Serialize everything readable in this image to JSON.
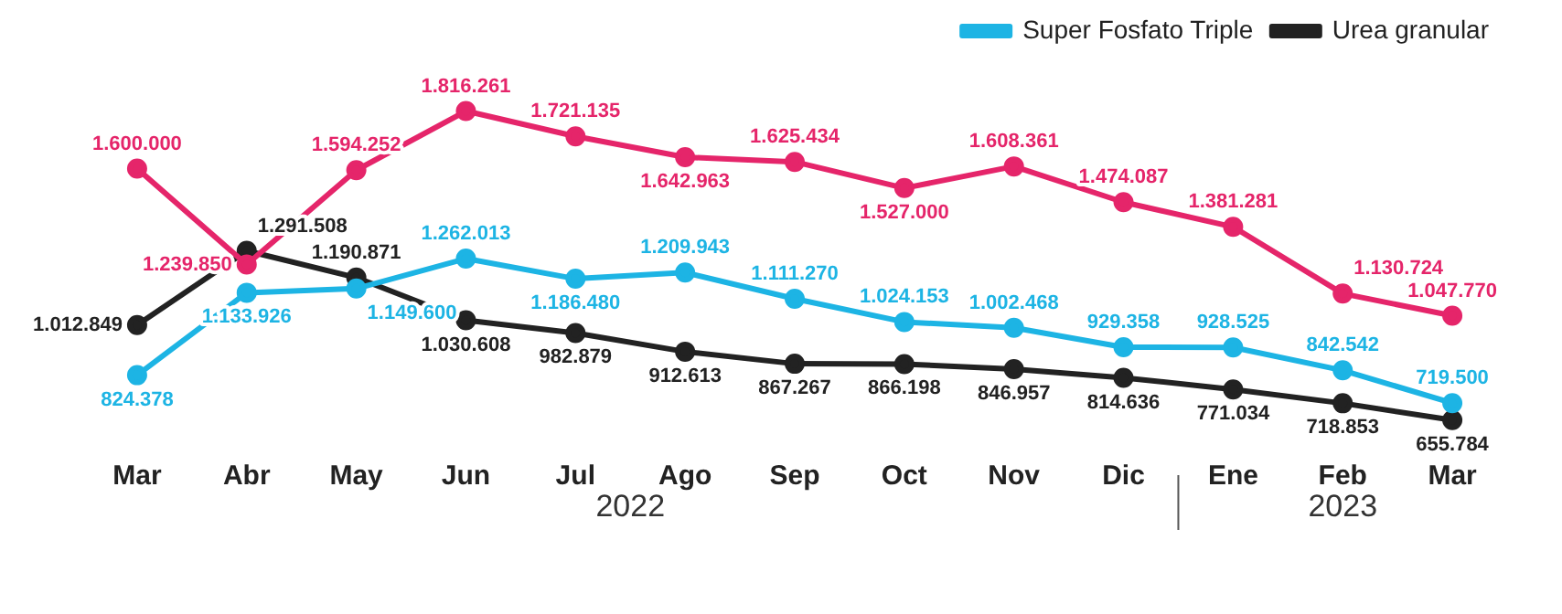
{
  "chart_data": {
    "type": "line",
    "categories": [
      "Mar",
      "Abr",
      "May",
      "Jun",
      "Jul",
      "Ago",
      "Sep",
      "Oct",
      "Nov",
      "Dic",
      "Ene",
      "Feb",
      "Mar"
    ],
    "series": [
      {
        "color": "#e5256a",
        "values": [
          1600000,
          1239850,
          1594252,
          1816261,
          1721135,
          1642963,
          1625434,
          1527000,
          1608361,
          1474087,
          1381281,
          1130724,
          1047770
        ],
        "value_labels": [
          "1.600.000",
          "1.239.850",
          "1.594.252",
          "1.816.261",
          "1.721.135",
          "1.642.963",
          "1.625.434",
          "1.527.000",
          "1.608.361",
          "1.474.087",
          "1.381.281",
          "1.130.724",
          "1.047.770"
        ]
      },
      {
        "name": "Super Fosfato Triple",
        "color": "#1db4e4",
        "values": [
          824378,
          1133926,
          1149600,
          1262013,
          1186480,
          1209943,
          1111270,
          1024153,
          1002468,
          929358,
          928525,
          842542,
          719500
        ],
        "value_labels": [
          "824.378",
          "1.133.926",
          "1.149.600",
          "1.262.013",
          "1.186.480",
          "1.209.943",
          "1.111.270",
          "1.024.153",
          "1.002.468",
          "929.358",
          "928.525",
          "842.542",
          "719.500"
        ]
      },
      {
        "name": "Urea granular",
        "color": "#222222",
        "values": [
          1012849,
          1291508,
          1190871,
          1030608,
          982879,
          912613,
          867267,
          866198,
          846957,
          814636,
          771034,
          718853,
          655784
        ],
        "value_labels": [
          "1.012.849",
          "1.291.508",
          "1.190.871",
          "1.030.608",
          "982.879",
          "912.613",
          "867.267",
          "866.198",
          "846.957",
          "814.636",
          "771.034",
          "718.853",
          "655.784"
        ]
      }
    ],
    "annotations": [
      "2022",
      "2023"
    ],
    "legend": "top right",
    "marker": "circle",
    "grid": false
  }
}
